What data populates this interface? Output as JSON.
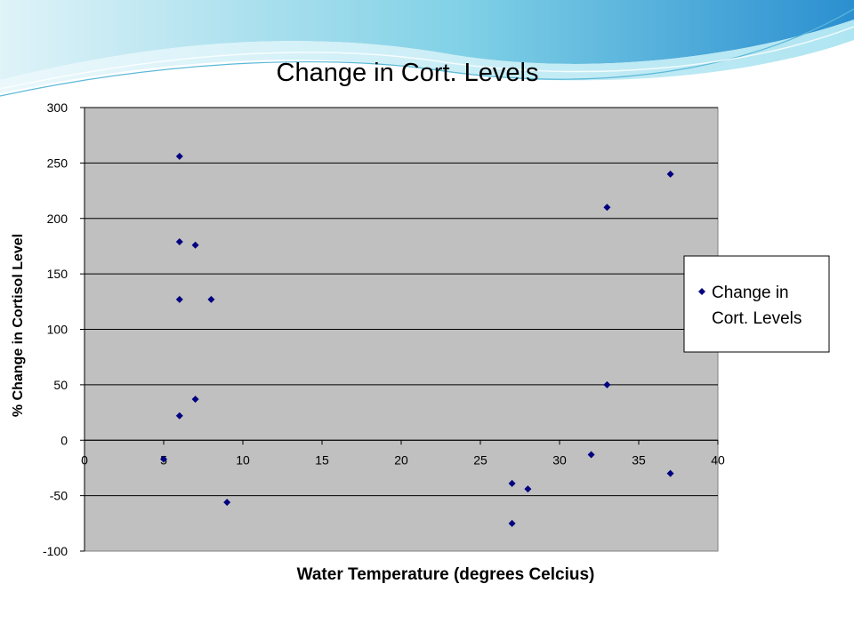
{
  "chart_data": {
    "type": "scatter",
    "title": "Change in Cort. Levels",
    "xlabel": "Water Temperature (degrees Celcius)",
    "ylabel": "% Change in Cortisol Level",
    "xlim": [
      0,
      40
    ],
    "ylim": [
      -100,
      300
    ],
    "xticks": [
      0,
      5,
      10,
      15,
      20,
      25,
      30,
      35,
      40
    ],
    "yticks": [
      -100,
      -50,
      0,
      50,
      100,
      150,
      200,
      250,
      300
    ],
    "grid": "horizontal",
    "legend_position": "right",
    "series": [
      {
        "name": "Change in Cort. Levels",
        "color": "#000080",
        "marker": "diamond",
        "points": [
          {
            "x": 5,
            "y": -17
          },
          {
            "x": 6,
            "y": 256
          },
          {
            "x": 6,
            "y": 179
          },
          {
            "x": 6,
            "y": 127
          },
          {
            "x": 6,
            "y": 22
          },
          {
            "x": 7,
            "y": 176
          },
          {
            "x": 7,
            "y": 37
          },
          {
            "x": 8,
            "y": 127
          },
          {
            "x": 9,
            "y": -56
          },
          {
            "x": 27,
            "y": -39
          },
          {
            "x": 27,
            "y": -75
          },
          {
            "x": 28,
            "y": -44
          },
          {
            "x": 32,
            "y": -13
          },
          {
            "x": 33,
            "y": 210
          },
          {
            "x": 33,
            "y": 50
          },
          {
            "x": 37,
            "y": 240
          },
          {
            "x": 37,
            "y": -30
          }
        ]
      }
    ],
    "legend": {
      "lines": [
        "Change in",
        "Cort. Levels"
      ]
    }
  }
}
